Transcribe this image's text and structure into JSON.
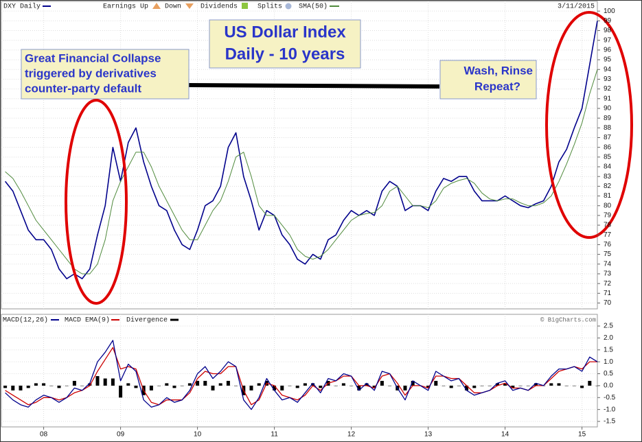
{
  "chart_data": [
    {
      "type": "line",
      "title_lines": [
        "US Dollar Index",
        "Daily - 10 years"
      ],
      "date_label": "3/11/2015",
      "event_legend": [
        "Earnings Up",
        "Down",
        "Dividends",
        "Splits"
      ],
      "annotations": [
        {
          "lines": [
            "Great Financial Collapse",
            "triggered by derivatives",
            "counter-party default"
          ]
        },
        {
          "lines": [
            "Wash, Rinse",
            "Repeat?"
          ]
        }
      ],
      "x": [
        2007.5,
        2007.6,
        2007.7,
        2007.8,
        2007.9,
        2008.0,
        2008.1,
        2008.2,
        2008.3,
        2008.4,
        2008.5,
        2008.6,
        2008.7,
        2008.8,
        2008.9,
        2009.0,
        2009.1,
        2009.2,
        2009.3,
        2009.4,
        2009.5,
        2009.6,
        2009.7,
        2009.8,
        2009.9,
        2010.0,
        2010.1,
        2010.2,
        2010.3,
        2010.4,
        2010.5,
        2010.6,
        2010.7,
        2010.8,
        2010.9,
        2011.0,
        2011.1,
        2011.2,
        2011.3,
        2011.4,
        2011.5,
        2011.6,
        2011.7,
        2011.8,
        2011.9,
        2012.0,
        2012.1,
        2012.2,
        2012.3,
        2012.4,
        2012.5,
        2012.6,
        2012.7,
        2012.8,
        2012.9,
        2013.0,
        2013.1,
        2013.2,
        2013.3,
        2013.4,
        2013.5,
        2013.6,
        2013.7,
        2013.8,
        2013.9,
        2014.0,
        2014.1,
        2014.2,
        2014.3,
        2014.4,
        2014.5,
        2014.6,
        2014.7,
        2014.8,
        2014.9,
        2015.0,
        2015.1,
        2015.2
      ],
      "series": [
        {
          "name": "DXY Daily",
          "color": "#00008b",
          "width": 1.6,
          "values": [
            82.5,
            81.5,
            79.5,
            77.5,
            76.5,
            76.5,
            75.5,
            73.5,
            72.5,
            73.0,
            72.5,
            73.5,
            77.0,
            80.0,
            86.0,
            82.5,
            86.5,
            88.0,
            84.5,
            82.0,
            80.0,
            79.5,
            77.5,
            76.0,
            75.5,
            77.5,
            80.0,
            80.5,
            82.0,
            86.0,
            87.5,
            83.0,
            80.5,
            77.5,
            79.5,
            79.0,
            77.0,
            76.0,
            74.5,
            74.0,
            75.0,
            74.5,
            76.5,
            77.0,
            78.5,
            79.5,
            79.0,
            79.5,
            79.0,
            81.5,
            82.5,
            82.0,
            79.5,
            80.0,
            80.0,
            79.5,
            81.5,
            82.8,
            82.5,
            83.0,
            83.0,
            81.5,
            80.5,
            80.5,
            80.5,
            81.0,
            80.5,
            80.0,
            79.8,
            80.2,
            80.5,
            82.0,
            84.5,
            85.8,
            88.0,
            90.0,
            94.5,
            99.0
          ]
        },
        {
          "name": "SMA(50)",
          "color": "#4f8a3c",
          "width": 1,
          "values": [
            83.5,
            82.8,
            81.5,
            80.0,
            78.5,
            77.5,
            76.5,
            75.5,
            74.5,
            73.5,
            73.0,
            73.0,
            74.0,
            76.5,
            80.5,
            82.5,
            84.0,
            85.5,
            85.5,
            84.0,
            82.0,
            80.5,
            79.0,
            77.5,
            76.5,
            76.5,
            78.0,
            79.5,
            80.5,
            82.5,
            85.0,
            85.5,
            83.0,
            80.0,
            79.0,
            79.0,
            78.0,
            77.0,
            75.5,
            74.8,
            74.5,
            74.8,
            75.5,
            76.5,
            77.5,
            78.5,
            79.0,
            79.2,
            79.3,
            80.0,
            81.5,
            82.0,
            81.0,
            80.0,
            80.0,
            79.8,
            80.5,
            81.8,
            82.3,
            82.6,
            82.8,
            82.3,
            81.3,
            80.7,
            80.5,
            80.7,
            80.7,
            80.3,
            80.0,
            80.0,
            80.3,
            81.0,
            82.5,
            84.3,
            86.3,
            88.5,
            91.5,
            94.0
          ]
        }
      ],
      "xlim": [
        2007.45,
        2015.2
      ],
      "ylim": [
        69.4,
        101.0
      ],
      "yticks": [
        70,
        71,
        72,
        73,
        74,
        75,
        76,
        77,
        78,
        79,
        80,
        81,
        82,
        83,
        84,
        85,
        86,
        87,
        88,
        89,
        90,
        91,
        92,
        93,
        94,
        95,
        96,
        97,
        98,
        99,
        100
      ],
      "grid": true
    },
    {
      "type": "macd",
      "credit": "© BigCharts.com",
      "x": [
        2007.5,
        2007.6,
        2007.7,
        2007.8,
        2007.9,
        2008.0,
        2008.1,
        2008.2,
        2008.3,
        2008.4,
        2008.5,
        2008.6,
        2008.7,
        2008.8,
        2008.9,
        2009.0,
        2009.1,
        2009.2,
        2009.3,
        2009.4,
        2009.5,
        2009.6,
        2009.7,
        2009.8,
        2009.9,
        2010.0,
        2010.1,
        2010.2,
        2010.3,
        2010.4,
        2010.5,
        2010.6,
        2010.7,
        2010.8,
        2010.9,
        2011.0,
        2011.1,
        2011.2,
        2011.3,
        2011.4,
        2011.5,
        2011.6,
        2011.7,
        2011.8,
        2011.9,
        2012.0,
        2012.1,
        2012.2,
        2012.3,
        2012.4,
        2012.5,
        2012.6,
        2012.7,
        2012.8,
        2012.9,
        2013.0,
        2013.1,
        2013.2,
        2013.3,
        2013.4,
        2013.5,
        2013.6,
        2013.7,
        2013.8,
        2013.9,
        2014.0,
        2014.1,
        2014.2,
        2014.3,
        2014.4,
        2014.5,
        2014.6,
        2014.7,
        2014.8,
        2014.9,
        2015.0,
        2015.1,
        2015.2
      ],
      "series": [
        {
          "name": "Divergence",
          "color": "#000000",
          "mark": "bar",
          "values": [
            -0.1,
            -0.2,
            -0.2,
            -0.1,
            0.1,
            0.1,
            0,
            -0.1,
            0,
            0.2,
            0,
            0.1,
            0.4,
            0.3,
            0.3,
            -0.5,
            0.1,
            -0.1,
            -0.4,
            -0.2,
            0,
            0.1,
            -0.1,
            0,
            0.1,
            0.2,
            0.2,
            -0.2,
            0.1,
            0.2,
            0,
            -0.4,
            -0.2,
            0.1,
            0.2,
            -0.2,
            -0.2,
            0,
            -0.1,
            0.1,
            0.1,
            -0.1,
            0.2,
            0,
            0.1,
            0,
            -0.2,
            0.1,
            -0.1,
            0.2,
            0,
            -0.2,
            -0.2,
            0.2,
            0,
            -0.1,
            0.2,
            0,
            -0.1,
            0,
            -0.2,
            -0.1,
            0,
            0,
            0.1,
            0.1,
            -0.1,
            0,
            0,
            0.1,
            0,
            0.1,
            0.1,
            0,
            0,
            -0.1,
            0.2,
            0
          ]
        },
        {
          "name": "MACD EMA(9)",
          "color": "#cc0000",
          "mark": "line",
          "values": [
            -0.2,
            -0.4,
            -0.6,
            -0.8,
            -0.7,
            -0.5,
            -0.5,
            -0.6,
            -0.5,
            -0.3,
            -0.2,
            0.0,
            0.6,
            1.1,
            1.6,
            0.7,
            0.8,
            0.7,
            -0.2,
            -0.7,
            -0.8,
            -0.6,
            -0.6,
            -0.6,
            -0.3,
            0.3,
            0.6,
            0.5,
            0.5,
            0.8,
            0.8,
            -0.2,
            -0.8,
            -0.6,
            0.1,
            0.0,
            -0.4,
            -0.5,
            -0.6,
            -0.4,
            0.0,
            -0.2,
            0.1,
            0.2,
            0.4,
            0.4,
            0.0,
            0.0,
            -0.1,
            0.4,
            0.5,
            0.1,
            -0.4,
            0.0,
            0.0,
            -0.1,
            0.4,
            0.4,
            0.3,
            0.3,
            0.0,
            -0.3,
            -0.3,
            -0.2,
            0.0,
            0.1,
            -0.1,
            -0.1,
            -0.2,
            0.0,
            0.0,
            0.3,
            0.6,
            0.7,
            0.8,
            0.7,
            1.0,
            1.0
          ]
        },
        {
          "name": "MACD(12,26)",
          "color": "#00008b",
          "mark": "line",
          "values": [
            -0.3,
            -0.6,
            -0.8,
            -0.9,
            -0.6,
            -0.4,
            -0.5,
            -0.7,
            -0.5,
            -0.1,
            -0.2,
            0.1,
            1.0,
            1.4,
            1.9,
            0.2,
            0.9,
            0.6,
            -0.6,
            -0.9,
            -0.8,
            -0.5,
            -0.7,
            -0.6,
            -0.2,
            0.5,
            0.8,
            0.3,
            0.6,
            1.0,
            0.8,
            -0.6,
            -1.0,
            -0.5,
            0.3,
            -0.2,
            -0.6,
            -0.5,
            -0.7,
            -0.3,
            0.1,
            -0.3,
            0.3,
            0.2,
            0.5,
            0.4,
            -0.2,
            0.1,
            -0.2,
            0.6,
            0.5,
            -0.1,
            -0.6,
            0.2,
            0.0,
            -0.2,
            0.6,
            0.4,
            0.2,
            0.3,
            -0.2,
            -0.4,
            -0.3,
            -0.2,
            0.1,
            0.2,
            -0.2,
            -0.1,
            -0.2,
            0.1,
            0.0,
            0.4,
            0.7,
            0.7,
            0.8,
            0.6,
            1.2,
            1.0
          ]
        }
      ],
      "xlim": [
        2007.45,
        2015.2
      ],
      "xticks": [
        {
          "value": 2008,
          "label": "08"
        },
        {
          "value": 2009,
          "label": "09"
        },
        {
          "value": 2010,
          "label": "10"
        },
        {
          "value": 2011,
          "label": "11"
        },
        {
          "value": 2012,
          "label": "12"
        },
        {
          "value": 2013,
          "label": "13"
        },
        {
          "value": 2014,
          "label": "14"
        },
        {
          "value": 2015,
          "label": "15"
        }
      ],
      "ylim": [
        -1.73,
        2.99
      ],
      "yticks": [
        2.5,
        {
          "value": 2,
          "label": "2.0"
        },
        1.5,
        {
          "value": 1,
          "label": "1.0"
        },
        0.5,
        {
          "value": 0,
          "label": "0.0"
        },
        -0.5,
        {
          "value": -1,
          "label": "-1.0"
        },
        -1.5
      ],
      "grid": true
    }
  ]
}
